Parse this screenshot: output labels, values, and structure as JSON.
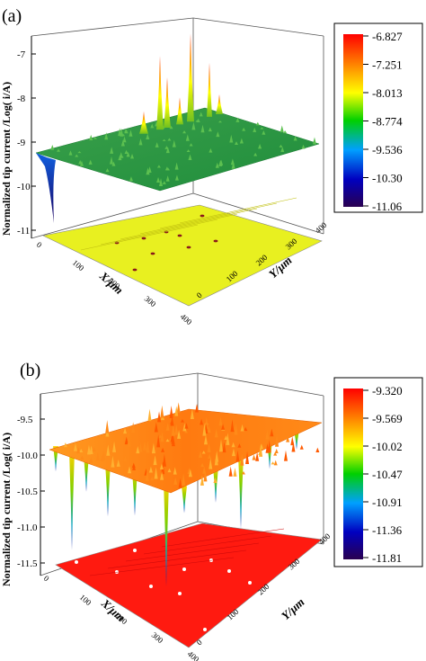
{
  "chart_data": [
    {
      "type": "surface3d",
      "panel_label": "(a)",
      "zlabel": "Normalized tip current /Log( i/A)",
      "xlabel": "X/μm",
      "ylabel": "Y/μm",
      "z_ticks": [
        "-7",
        "-8",
        "-9",
        "-10",
        "-11"
      ],
      "x_ticks": [
        "0",
        "100",
        "200",
        "300",
        "400"
      ],
      "y_ticks": [
        "0",
        "100",
        "200",
        "300",
        "400"
      ],
      "colorbar_ticks": [
        "-6.827",
        "-7.251",
        "-8.013",
        "-8.774",
        "-9.536",
        "-10.30",
        "-11.06"
      ],
      "zlim": [
        -11.06,
        -6.827
      ],
      "baseline": -9.1,
      "peaks": [
        {
          "x": 120,
          "y": 300,
          "z": -6.9
        },
        {
          "x": 150,
          "y": 280,
          "z": -7.5
        },
        {
          "x": 230,
          "y": 310,
          "z": -7.1
        },
        {
          "x": 180,
          "y": 250,
          "z": -8.3
        },
        {
          "x": 260,
          "y": 200,
          "z": -8.6
        }
      ],
      "dip": {
        "x": 0,
        "y": 20,
        "z": -10.9
      }
    },
    {
      "type": "surface3d",
      "panel_label": "(b)",
      "zlabel": "Normalized tip current /Log( i/A)",
      "xlabel": "X/μm",
      "ylabel": "Y/μm",
      "z_ticks": [
        "-9.5",
        "-10.0",
        "-10.5",
        "-11.0",
        "-11.5"
      ],
      "x_ticks": [
        "0",
        "100",
        "200",
        "300",
        "400"
      ],
      "y_ticks": [
        "0",
        "100",
        "200",
        "300",
        "400"
      ],
      "colorbar_ticks": [
        "-9.320",
        "-9.569",
        "-10.02",
        "-10.47",
        "-10.91",
        "-11.36",
        "-11.81"
      ],
      "zlim": [
        -11.81,
        -9.32
      ],
      "baseline": -9.8,
      "dips": [
        {
          "x": 40,
          "y": 60,
          "z": -11.6
        },
        {
          "x": 110,
          "y": 110,
          "z": -11.0
        },
        {
          "x": 170,
          "y": 150,
          "z": -10.7
        },
        {
          "x": 220,
          "y": 200,
          "z": -11.1
        },
        {
          "x": 330,
          "y": 240,
          "z": -11.3
        },
        {
          "x": 80,
          "y": 40,
          "z": -10.6
        }
      ]
    }
  ]
}
